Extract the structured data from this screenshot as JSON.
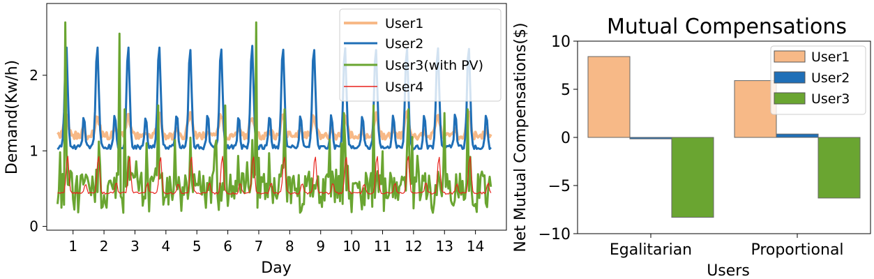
{
  "chart_data": [
    {
      "type": "line",
      "title": "",
      "xlabel": "Day",
      "ylabel": "Demand(Kw/h)",
      "xlim": [
        0.15,
        15.0
      ],
      "ylim": [
        -0.05,
        2.95
      ],
      "xticks": [
        1,
        2,
        3,
        4,
        5,
        6,
        7,
        8,
        9,
        10,
        11,
        12,
        13,
        14
      ],
      "xtick_labels": [
        "1",
        "2",
        "3",
        "4",
        "5",
        "6",
        "7",
        "8",
        "9",
        "10",
        "11",
        "12",
        "13",
        "14"
      ],
      "yticks": [
        0,
        1,
        2
      ],
      "ytick_labels": [
        "0",
        "1",
        "2"
      ],
      "x_range": [
        0.5,
        14.5
      ],
      "samples_per_day": 24,
      "legend": {
        "position": "upper right",
        "entries": [
          "User1",
          "User2",
          "User3(with PV)",
          "User4"
        ]
      },
      "series": [
        {
          "name": "User1",
          "color": "#f7b987",
          "description": "daily profile: base ~1.2, evening peak ~1.5"
        },
        {
          "name": "User2",
          "color": "#1f6fb7",
          "description": "daily profile: base ~1.05, evening peak ~2.4"
        },
        {
          "name": "User3(with PV)",
          "color": "#6aa531",
          "description": "volatile profile between ~0.15 and ~1.6, spikes to 2.7"
        },
        {
          "name": "User4",
          "color": "#e8211b",
          "description": "daily profile: base ~0.45, peak ~0.95"
        }
      ]
    },
    {
      "type": "bar",
      "title": "Mutual Compensations",
      "xlabel": "Users",
      "ylabel": "Net Mutual Compensations($)",
      "ylim": [
        -10.0,
        10.0
      ],
      "yticks": [
        -10,
        -5,
        0,
        5,
        10
      ],
      "ytick_labels": [
        "−10",
        "−5",
        "0",
        "5",
        "10"
      ],
      "categories": [
        "Egalitarian",
        "Proportional"
      ],
      "legend": {
        "position": "upper right",
        "entries": [
          "User1",
          "User2",
          "User3"
        ]
      },
      "series": [
        {
          "name": "User1",
          "color": "#f7b987",
          "values": [
            8.4,
            5.9
          ]
        },
        {
          "name": "User2",
          "color": "#1f6fb7",
          "values": [
            -0.15,
            0.35
          ]
        },
        {
          "name": "User3",
          "color": "#6aa531",
          "values": [
            -8.3,
            -6.3
          ]
        }
      ]
    }
  ]
}
